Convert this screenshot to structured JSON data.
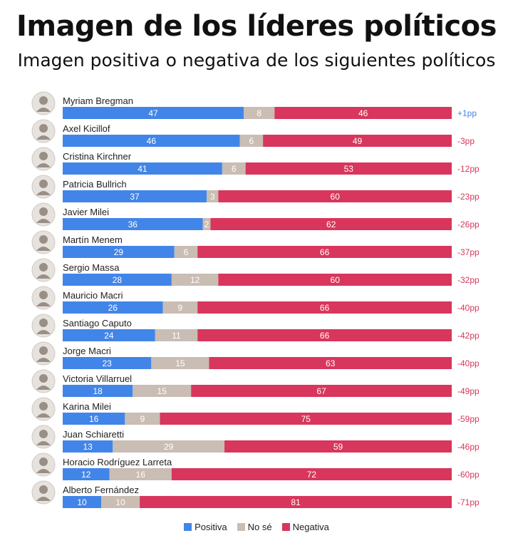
{
  "title": "Imagen de los líderes políticos",
  "subtitle": "Imagen positiva o negativa de los siguientes políticos",
  "colors": {
    "positiva": "#4285e8",
    "nose": "#c9bdb4",
    "negativa": "#d8365c",
    "diff_positive": "#4285e8",
    "diff_negative": "#d8365c"
  },
  "legend": [
    {
      "key": "positiva",
      "label": "Positiva",
      "color": "#4285e8"
    },
    {
      "key": "nose",
      "label": "No sé",
      "color": "#c9bdb4"
    },
    {
      "key": "negativa",
      "label": "Negativa",
      "color": "#d8365c"
    }
  ],
  "chart_data": {
    "type": "bar",
    "stacked": true,
    "orientation": "horizontal",
    "title": "Imagen de los líderes políticos",
    "subtitle": "Imagen positiva o negativa de los siguientes políticos",
    "categories": [
      "Myriam Bregman",
      "Axel Kicillof",
      "Cristina Kirchner",
      "Patricia Bullrich",
      "Javier Milei",
      "Martín Menem",
      "Sergio Massa",
      "Mauricio Macri",
      "Santiago Caputo",
      "Jorge Macri",
      "Victoria Villarruel",
      "Karina Milei",
      "Juan Schiaretti",
      "Horacio Rodríguez Larreta",
      "Alberto Fernández"
    ],
    "series": [
      {
        "name": "Positiva",
        "values": [
          47,
          46,
          41,
          37,
          36,
          29,
          28,
          26,
          24,
          23,
          18,
          16,
          13,
          12,
          10
        ]
      },
      {
        "name": "No sé",
        "values": [
          8,
          6,
          6,
          3,
          2,
          6,
          12,
          9,
          11,
          15,
          15,
          9,
          29,
          16,
          10
        ]
      },
      {
        "name": "Negativa",
        "values": [
          46,
          49,
          53,
          60,
          62,
          66,
          60,
          66,
          66,
          63,
          67,
          75,
          59,
          72,
          81
        ]
      }
    ],
    "diffs": [
      "+1pp",
      "-3pp",
      "-12pp",
      "-23pp",
      "-26pp",
      "-37pp",
      "-32pp",
      "-40pp",
      "-42pp",
      "-40pp",
      "-49pp",
      "-59pp",
      "-46pp",
      "-60pp",
      "-71pp"
    ],
    "legend_position": "bottom-center",
    "grid": false
  }
}
